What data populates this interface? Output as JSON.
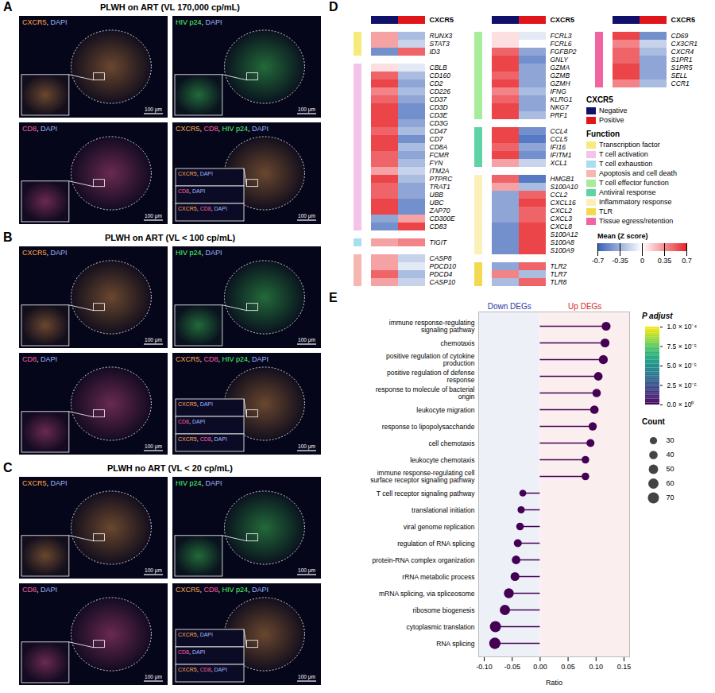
{
  "figure_panels": [
    {
      "label": "A",
      "title": "PLWH on ART (VL 170,000 cp/mL)",
      "tiles": [
        "CXCR5, DAPI",
        "HIV p24, DAPI",
        "CD8, DAPI",
        "CXCR5, CD8, HIV p24, DAPI"
      ],
      "inset_labels": [
        "CXCR5, DAPI",
        "CD8, DAPI",
        "CXCR5, CD8, DAPI"
      ],
      "scale_bar": "100 μm"
    },
    {
      "label": "B",
      "title": "PLWH on ART (VL < 100 cp/mL)",
      "tiles": [
        "CXCR5, DAPI",
        "HIV p24, DAPI",
        "CD8, DAPI",
        "CXCR5, CD8, HIV p24, DAPI"
      ],
      "inset_labels": [
        "CXCR5, DAPI",
        "CD8, DAPI",
        "CXCR5, CD8, DAPI"
      ],
      "scale_bar": "100 μm"
    },
    {
      "label": "C",
      "title": "PLWH no ART (VL < 20 cp/mL)",
      "tiles": [
        "CXCR5, DAPI",
        "HIV p24, DAPI",
        "CD8, DAPI",
        "CXCR5, CD8, HIV p24, DAPI"
      ],
      "inset_labels": [
        "CXCR5, DAPI",
        "CD8, DAPI",
        "CXCR5, CD8, DAPI"
      ],
      "scale_bar": "100 μm"
    }
  ],
  "channel_colors": {
    "CXCR5": "#ffa94d",
    "DAPI": "#9db8ff",
    "HIV p24": "#4dff6a",
    "CD8": "#ff5fa2"
  },
  "chart_data": [
    {
      "type": "heatmap",
      "label": "D",
      "series_title": "CXCR5",
      "series": [
        {
          "name": "Negative",
          "color": "#11116b"
        },
        {
          "name": "Positive",
          "color": "#e0161b"
        }
      ],
      "functions_title": "Function",
      "functions": [
        {
          "name": "Transcription factor",
          "color": "#f6ea7a"
        },
        {
          "name": "T cell activation",
          "color": "#f4c4e8"
        },
        {
          "name": "T cell exhaustion",
          "color": "#a7def0"
        },
        {
          "name": "Apoptosis and cell death",
          "color": "#f6b7b0"
        },
        {
          "name": "T cell effector function",
          "color": "#a7ec9a"
        },
        {
          "name": "Antiviral response",
          "color": "#5fd3a3"
        },
        {
          "name": "Inflammatory response",
          "color": "#fbf0b8"
        },
        {
          "name": "TLR",
          "color": "#f2d94e"
        },
        {
          "name": "Tissue egress/retention",
          "color": "#f0649f"
        }
      ],
      "colorbar": {
        "title": "Mean (Z score)",
        "range": [
          -0.7,
          0.7
        ],
        "ticks": [
          -0.7,
          -0.35,
          0,
          0.35,
          0.7
        ],
        "colors": [
          "#3b62b8",
          "#ffffff",
          "#e8262b"
        ]
      },
      "columns": [
        [
          {
            "gene": "RUNX3",
            "function": "Transcription factor",
            "values": [
              0.3,
              -0.3
            ]
          },
          {
            "gene": "STAT3",
            "function": "Transcription factor",
            "values": [
              0.3,
              -0.2
            ]
          },
          {
            "gene": "ID3",
            "function": "Transcription factor",
            "values": [
              -0.5,
              0.5
            ]
          },
          {
            "gene": "CBLB",
            "function": "T cell activation",
            "values": [
              0.1,
              -0.1
            ]
          },
          {
            "gene": "CD160",
            "function": "T cell activation",
            "values": [
              0.5,
              -0.3
            ]
          },
          {
            "gene": "CD2",
            "function": "T cell activation",
            "values": [
              0.6,
              -0.4
            ]
          },
          {
            "gene": "CD226",
            "function": "T cell activation",
            "values": [
              0.4,
              -0.3
            ]
          },
          {
            "gene": "CD37",
            "function": "T cell activation",
            "values": [
              0.5,
              -0.4
            ]
          },
          {
            "gene": "CD3D",
            "function": "T cell activation",
            "values": [
              0.6,
              -0.5
            ]
          },
          {
            "gene": "CD3E",
            "function": "T cell activation",
            "values": [
              0.6,
              -0.5
            ]
          },
          {
            "gene": "CD3G",
            "function": "T cell activation",
            "values": [
              0.6,
              -0.4
            ]
          },
          {
            "gene": "CD47",
            "function": "T cell activation",
            "values": [
              0.5,
              -0.3
            ]
          },
          {
            "gene": "CD7",
            "function": "T cell activation",
            "values": [
              0.6,
              -0.5
            ]
          },
          {
            "gene": "CD8A",
            "function": "T cell activation",
            "values": [
              0.6,
              -0.3
            ]
          },
          {
            "gene": "FCMR",
            "function": "T cell activation",
            "values": [
              0.5,
              -0.4
            ]
          },
          {
            "gene": "FYN",
            "function": "T cell activation",
            "values": [
              0.5,
              -0.3
            ]
          },
          {
            "gene": "ITM2A",
            "function": "T cell activation",
            "values": [
              0.3,
              -0.2
            ]
          },
          {
            "gene": "PTPRC",
            "function": "T cell activation",
            "values": [
              0.6,
              -0.3
            ]
          },
          {
            "gene": "TRAT1",
            "function": "T cell activation",
            "values": [
              0.5,
              -0.4
            ]
          },
          {
            "gene": "UBB",
            "function": "T cell activation",
            "values": [
              0.5,
              -0.4
            ]
          },
          {
            "gene": "UBC",
            "function": "T cell activation",
            "values": [
              0.6,
              -0.5
            ]
          },
          {
            "gene": "ZAP70",
            "function": "T cell activation",
            "values": [
              0.6,
              -0.5
            ]
          },
          {
            "gene": "CD300E",
            "function": "T cell activation",
            "values": [
              -0.4,
              0.3
            ]
          },
          {
            "gene": "CD83",
            "function": "T cell activation",
            "values": [
              -0.5,
              0.6
            ]
          },
          {
            "gene": "TIGIT",
            "function": "T cell exhaustion",
            "values": [
              0.3,
              0.4
            ]
          },
          {
            "gene": "CASP8",
            "function": "Apoptosis and cell death",
            "values": [
              0.3,
              -0.2
            ]
          },
          {
            "gene": "PDCD10",
            "function": "Apoptosis and cell death",
            "values": [
              0.3,
              -0.1
            ]
          },
          {
            "gene": "PDCD4",
            "function": "Apoptosis and cell death",
            "values": [
              0.5,
              -0.3
            ]
          },
          {
            "gene": "CASP10",
            "function": "Apoptosis and cell death",
            "values": [
              0.3,
              -0.2
            ]
          }
        ],
        [
          {
            "gene": "FCRL3",
            "function": "T cell effector function",
            "values": [
              0.1,
              -0.1
            ]
          },
          {
            "gene": "FCRL6",
            "function": "T cell effector function",
            "values": [
              0.1,
              0
            ]
          },
          {
            "gene": "FGFBP2",
            "function": "T cell effector function",
            "values": [
              0.5,
              -0.4
            ]
          },
          {
            "gene": "GNLY",
            "function": "T cell effector function",
            "values": [
              0.6,
              -0.5
            ]
          },
          {
            "gene": "GZMA",
            "function": "T cell effector function",
            "values": [
              0.6,
              -0.4
            ]
          },
          {
            "gene": "GZMB",
            "function": "T cell effector function",
            "values": [
              0.5,
              -0.4
            ]
          },
          {
            "gene": "GZMH",
            "function": "T cell effector function",
            "values": [
              0.6,
              -0.4
            ]
          },
          {
            "gene": "IFNG",
            "function": "T cell effector function",
            "values": [
              0.4,
              -0.3
            ]
          },
          {
            "gene": "KLRG1",
            "function": "T cell effector function",
            "values": [
              0.5,
              -0.4
            ]
          },
          {
            "gene": "NKG7",
            "function": "T cell effector function",
            "values": [
              0.6,
              -0.4
            ]
          },
          {
            "gene": "PRF1",
            "function": "T cell effector function",
            "values": [
              0.6,
              -0.3
            ]
          },
          {
            "gene": "CCL4",
            "function": "Antiviral response",
            "values": [
              0.6,
              -0.5
            ]
          },
          {
            "gene": "CCL5",
            "function": "Antiviral response",
            "values": [
              0.6,
              -0.6
            ]
          },
          {
            "gene": "IFI16",
            "function": "Antiviral response",
            "values": [
              0.5,
              -0.4
            ]
          },
          {
            "gene": "IFITM1",
            "function": "Antiviral response",
            "values": [
              0.6,
              -0.5
            ]
          },
          {
            "gene": "XCL1",
            "function": "Antiviral response",
            "values": [
              0.3,
              -0.2
            ]
          },
          {
            "gene": "HMGB1",
            "function": "Inflammatory response",
            "values": [
              0.5,
              -0.6
            ]
          },
          {
            "gene": "S100A10",
            "function": "Inflammatory response",
            "values": [
              0.3,
              -0.3
            ]
          },
          {
            "gene": "CCL2",
            "function": "Inflammatory response",
            "values": [
              -0.4,
              0.5
            ]
          },
          {
            "gene": "CXCL16",
            "function": "Inflammatory response",
            "values": [
              -0.4,
              0.6
            ]
          },
          {
            "gene": "CXCL2",
            "function": "Inflammatory response",
            "values": [
              -0.4,
              0.5
            ]
          },
          {
            "gene": "CXCL3",
            "function": "Inflammatory response",
            "values": [
              -0.4,
              0.5
            ]
          },
          {
            "gene": "CXCL8",
            "function": "Inflammatory response",
            "values": [
              -0.5,
              0.6
            ]
          },
          {
            "gene": "S100A12",
            "function": "Inflammatory response",
            "values": [
              -0.5,
              0.6
            ]
          },
          {
            "gene": "S100A8",
            "function": "Inflammatory response",
            "values": [
              -0.5,
              0.6
            ]
          },
          {
            "gene": "S100A9",
            "function": "Inflammatory response",
            "values": [
              -0.5,
              0.6
            ]
          },
          {
            "gene": "TLR2",
            "function": "TLR",
            "values": [
              -0.4,
              0.5
            ]
          },
          {
            "gene": "TLR7",
            "function": "TLR",
            "values": [
              0.4,
              -0.3
            ]
          },
          {
            "gene": "TLR8",
            "function": "TLR",
            "values": [
              -0.3,
              0.5
            ]
          }
        ],
        [
          {
            "gene": "CD69",
            "function": "Tissue egress/retention",
            "values": [
              0.6,
              -0.5
            ]
          },
          {
            "gene": "CX3CR1",
            "function": "Tissue egress/retention",
            "values": [
              0.4,
              -0.2
            ]
          },
          {
            "gene": "CXCR4",
            "function": "Tissue egress/retention",
            "values": [
              0.5,
              -0.3
            ]
          },
          {
            "gene": "S1PR1",
            "function": "Tissue egress/retention",
            "values": [
              0.5,
              -0.4
            ]
          },
          {
            "gene": "S1PR5",
            "function": "Tissue egress/retention",
            "values": [
              0.6,
              -0.4
            ]
          },
          {
            "gene": "SELL",
            "function": "Tissue egress/retention",
            "values": [
              0.6,
              -0.4
            ]
          },
          {
            "gene": "CCR1",
            "function": "Tissue egress/retention",
            "values": [
              0.4,
              -0.3
            ]
          }
        ]
      ]
    },
    {
      "type": "lollipop",
      "label": "E",
      "orientation": "horizontal",
      "categories": [
        "immune response-regulating signaling pathway",
        "chemotaxis",
        "positive regulation of cytokine production",
        "positive regulation of defense response",
        "response to molecule of bacterial origin",
        "leukocyte migration",
        "response to lipopolysaccharide",
        "cell chemotaxis",
        "leukocyte chemotaxis",
        "immune response-regulating cell surface receptor signaling pathway",
        "T cell receptor signaling pathway",
        "translational initiation",
        "viral genome replication",
        "regulation of RNA splicing",
        "protein-RNA complex organization",
        "rRNA metabolic process",
        "mRNA splicing, via spliceosome",
        "ribosome biogenesis",
        "cytoplasmic translation",
        "RNA splicing"
      ],
      "values": [
        0.118,
        0.116,
        0.113,
        0.104,
        0.101,
        0.097,
        0.094,
        0.09,
        0.081,
        0.081,
        -0.031,
        -0.034,
        -0.036,
        -0.04,
        -0.043,
        -0.045,
        -0.056,
        -0.063,
        -0.08,
        -0.081
      ],
      "counts": [
        45,
        45,
        46,
        42,
        40,
        41,
        38,
        36,
        33,
        33,
        27,
        30,
        33,
        36,
        42,
        44,
        55,
        60,
        70,
        73
      ],
      "p_adjust": [
        0,
        0,
        0,
        0,
        0,
        0,
        0,
        0,
        0,
        0,
        0,
        0,
        0,
        0,
        0,
        0,
        0,
        0,
        0,
        0
      ],
      "x_label": "Ratio",
      "xlim": [
        -0.11,
        0.16
      ],
      "xticks": [
        {
          "value": -0.1,
          "label": "-0.10"
        },
        {
          "value": -0.05,
          "label": "-0.05"
        },
        {
          "value": 0,
          "label": "0.00"
        },
        {
          "value": 0.05,
          "label": "0.05"
        },
        {
          "value": 0.1,
          "label": "0.10"
        },
        {
          "value": 0.15,
          "label": "0.15"
        }
      ],
      "annotations": {
        "down": {
          "text": "Down DEGs",
          "color": "#2936a8"
        },
        "up": {
          "text": "Up DEGs",
          "color": "#d62728"
        }
      },
      "p_adjust_legend": {
        "title": "P adjust",
        "range": [
          0,
          0.0001
        ],
        "ticks": [
          {
            "value": 0.0001,
            "label": "1.0 × 10⁻⁴"
          },
          {
            "value": 7.5e-05,
            "label": "7.5 × 10⁻⁵"
          },
          {
            "value": 5e-05,
            "label": "5.0 × 10⁻⁵"
          },
          {
            "value": 2.5e-05,
            "label": "2.5 × 10⁻⁵"
          },
          {
            "value": 0,
            "label": "0.0 × 10⁰"
          }
        ]
      },
      "count_legend": {
        "title": "Count",
        "values": [
          30,
          40,
          50,
          60,
          70
        ]
      }
    }
  ]
}
